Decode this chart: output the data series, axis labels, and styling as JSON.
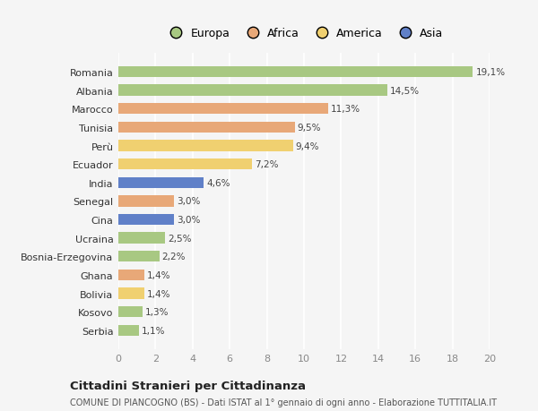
{
  "countries": [
    "Romania",
    "Albania",
    "Marocco",
    "Tunisia",
    "Perù",
    "Ecuador",
    "India",
    "Senegal",
    "Cina",
    "Ucraina",
    "Bosnia-Erzegovina",
    "Ghana",
    "Bolivia",
    "Kosovo",
    "Serbia"
  ],
  "values": [
    19.1,
    14.5,
    11.3,
    9.5,
    9.4,
    7.2,
    4.6,
    3.0,
    3.0,
    2.5,
    2.2,
    1.4,
    1.4,
    1.3,
    1.1
  ],
  "labels": [
    "19,1%",
    "14,5%",
    "11,3%",
    "9,5%",
    "9,4%",
    "7,2%",
    "4,6%",
    "3,0%",
    "3,0%",
    "2,5%",
    "2,2%",
    "1,4%",
    "1,4%",
    "1,3%",
    "1,1%"
  ],
  "colors": [
    "#a8c882",
    "#a8c882",
    "#e8a878",
    "#e8a878",
    "#f0d070",
    "#f0d070",
    "#6080c8",
    "#e8a878",
    "#6080c8",
    "#a8c882",
    "#a8c882",
    "#e8a878",
    "#f0d070",
    "#a8c882",
    "#a8c882"
  ],
  "legend": [
    {
      "label": "Europa",
      "color": "#a8c882"
    },
    {
      "label": "Africa",
      "color": "#e8a878"
    },
    {
      "label": "America",
      "color": "#f0d070"
    },
    {
      "label": "Asia",
      "color": "#6080c8"
    }
  ],
  "title": "Cittadini Stranieri per Cittadinanza",
  "subtitle": "COMUNE DI PIANCOGNO (BS) - Dati ISTAT al 1° gennaio di ogni anno - Elaborazione TUTTITALIA.IT",
  "xlim": [
    0,
    20
  ],
  "xticks": [
    0,
    2,
    4,
    6,
    8,
    10,
    12,
    14,
    16,
    18,
    20
  ],
  "background_color": "#f5f5f5",
  "grid_color": "#ffffff",
  "bar_height": 0.6
}
